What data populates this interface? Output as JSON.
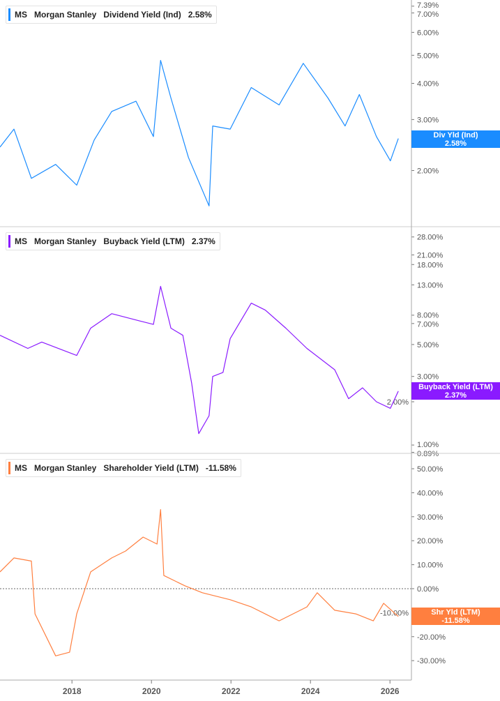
{
  "chart_data": [
    {
      "type": "line",
      "ticker": "MS",
      "company": "Morgan Stanley",
      "metric": "Dividend Yield (Ind)",
      "current": "2.58%",
      "tag_label": "Div Yld (Ind)",
      "color": "#1a8cff",
      "scale": "log",
      "ylim": [
        1.28,
        7.76
      ],
      "yticks": [
        "7.39%",
        "7.00%",
        "6.00%",
        "5.00%",
        "4.00%",
        "3.00%",
        "2.00%"
      ],
      "ytick_values": [
        7.39,
        7.0,
        6.0,
        5.0,
        4.0,
        3.0,
        2.0
      ],
      "points": [
        [
          2016.19,
          2.41
        ],
        [
          2016.54,
          2.78
        ],
        [
          2016.98,
          1.88
        ],
        [
          2017.59,
          2.1
        ],
        [
          2018.12,
          1.78
        ],
        [
          2018.56,
          2.55
        ],
        [
          2019.0,
          3.2
        ],
        [
          2019.61,
          3.47
        ],
        [
          2020.05,
          2.62
        ],
        [
          2020.23,
          4.8
        ],
        [
          2020.49,
          3.56
        ],
        [
          2020.93,
          2.22
        ],
        [
          2021.45,
          1.51
        ],
        [
          2021.54,
          2.85
        ],
        [
          2021.98,
          2.78
        ],
        [
          2022.51,
          3.87
        ],
        [
          2023.21,
          3.37
        ],
        [
          2023.82,
          4.69
        ],
        [
          2024.44,
          3.56
        ],
        [
          2024.87,
          2.85
        ],
        [
          2025.23,
          3.66
        ],
        [
          2025.66,
          2.62
        ],
        [
          2026.01,
          2.16
        ],
        [
          2026.21,
          2.58
        ]
      ]
    },
    {
      "type": "line",
      "ticker": "MS",
      "company": "Morgan Stanley",
      "metric": "Buyback Yield (LTM)",
      "current": "2.37%",
      "tag_label": "Buyback Yield (LTM)",
      "color": "#8a1aff",
      "scale": "log",
      "ylim": [
        0.875,
        33.0
      ],
      "yticks": [
        "28.00%",
        "21.00%",
        "18.00%",
        "13.00%",
        "8.00%",
        "7.00%",
        "5.00%",
        "3.00%",
        "2.00%",
        "1.00%",
        "0.89%"
      ],
      "ytick_values": [
        28,
        21,
        18,
        13,
        8,
        7,
        5,
        3,
        2,
        1,
        0.89
      ],
      "points": [
        [
          2016.19,
          5.8
        ],
        [
          2016.89,
          4.7
        ],
        [
          2017.24,
          5.2
        ],
        [
          2018.12,
          4.2
        ],
        [
          2018.47,
          6.5
        ],
        [
          2019.0,
          8.2
        ],
        [
          2019.7,
          7.3
        ],
        [
          2020.05,
          6.9
        ],
        [
          2020.23,
          12.7
        ],
        [
          2020.49,
          6.5
        ],
        [
          2020.79,
          5.8
        ],
        [
          2021.01,
          2.7
        ],
        [
          2021.19,
          1.2
        ],
        [
          2021.45,
          1.6
        ],
        [
          2021.54,
          3.0
        ],
        [
          2021.8,
          3.2
        ],
        [
          2021.98,
          5.5
        ],
        [
          2022.51,
          9.7
        ],
        [
          2022.86,
          8.7
        ],
        [
          2023.38,
          6.5
        ],
        [
          2023.91,
          4.7
        ],
        [
          2024.61,
          3.34
        ],
        [
          2024.96,
          2.1
        ],
        [
          2025.31,
          2.5
        ],
        [
          2025.66,
          2.0
        ],
        [
          2026.01,
          1.8
        ],
        [
          2026.21,
          2.37
        ]
      ]
    },
    {
      "type": "line",
      "ticker": "MS",
      "company": "Morgan Stanley",
      "metric": "Shareholder Yield (LTM)",
      "current": "-11.58%",
      "tag_label": "Shr Yld (LTM)",
      "color": "#ff7f3f",
      "scale": "linear",
      "ylim": [
        -38.1,
        56.4
      ],
      "yticks": [
        "50.00%",
        "40.00%",
        "30.00%",
        "20.00%",
        "10.00%",
        "0.00%",
        "-10.00%",
        "-20.00%",
        "-30.00%"
      ],
      "ytick_values": [
        50,
        40,
        30,
        20,
        10,
        0,
        -10,
        -20,
        -30
      ],
      "points": [
        [
          2016.19,
          7
        ],
        [
          2016.54,
          12.8
        ],
        [
          2016.98,
          11.5
        ],
        [
          2017.07,
          -10.5
        ],
        [
          2017.59,
          -28
        ],
        [
          2017.94,
          -26.5
        ],
        [
          2018.12,
          -10.5
        ],
        [
          2018.47,
          7
        ],
        [
          2019.0,
          12.8
        ],
        [
          2019.35,
          15.7
        ],
        [
          2019.79,
          21.5
        ],
        [
          2020.14,
          18.6
        ],
        [
          2020.23,
          33
        ],
        [
          2020.31,
          5.5
        ],
        [
          2020.84,
          1.2
        ],
        [
          2021.28,
          -1.7
        ],
        [
          2021.98,
          -4.6
        ],
        [
          2022.51,
          -7.6
        ],
        [
          2023.21,
          -13.4
        ],
        [
          2023.91,
          -7.6
        ],
        [
          2024.17,
          -1.7
        ],
        [
          2024.61,
          -9
        ],
        [
          2025.14,
          -10.5
        ],
        [
          2025.58,
          -13.4
        ],
        [
          2025.84,
          -6.1
        ],
        [
          2026.21,
          -11.58
        ]
      ]
    }
  ],
  "x_axis": {
    "ticks": [
      "2018",
      "2020",
      "2022",
      "2024",
      "2026"
    ],
    "tick_values": [
      2018,
      2020,
      2022,
      2024,
      2026
    ],
    "xlim": [
      2016.19,
      2026.54
    ]
  }
}
